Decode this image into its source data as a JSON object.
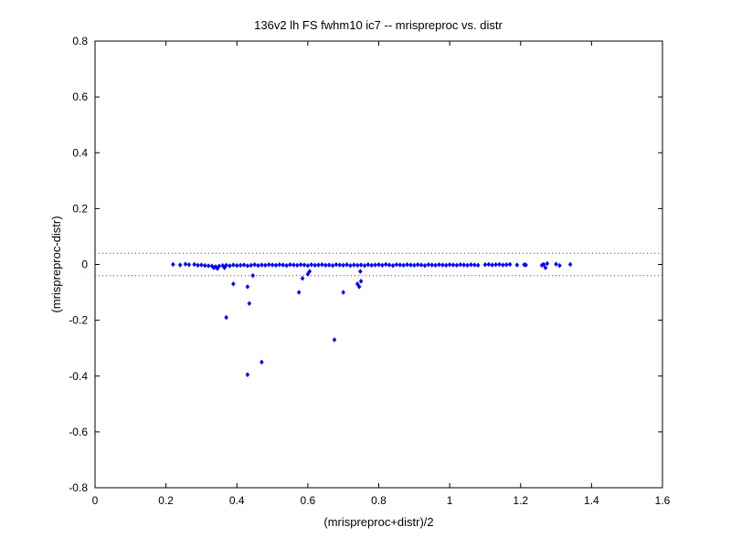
{
  "chart_data": {
    "type": "scatter",
    "title": "136v2 lh FS fwhm10 ic7 -- mrispreproc vs. distr",
    "xlabel": "(mrispreproc+distr)/2",
    "ylabel": "(mrispreproc-distr)",
    "xlim": [
      0,
      1.6
    ],
    "ylim": [
      -0.8,
      0.8
    ],
    "xticks": [
      "0",
      "0.2",
      "0.4",
      "0.6",
      "0.8",
      "1",
      "1.2",
      "1.4",
      "1.6"
    ],
    "xtick_values": [
      0,
      0.2,
      0.4,
      0.6,
      0.8,
      1.0,
      1.2,
      1.4,
      1.6
    ],
    "yticks": [
      "0.8",
      "0.6",
      "0.4",
      "0.2",
      "0",
      "-0.2",
      "-0.4",
      "-0.6",
      "-0.8"
    ],
    "ytick_values": [
      0.8,
      0.6,
      0.4,
      0.2,
      0,
      -0.2,
      -0.4,
      -0.6,
      -0.8
    ],
    "grid": false,
    "marker_color": "#0000ff",
    "threshold_color": "#ff0000",
    "threshold_lines": [
      0.04,
      -0.04
    ],
    "series": [
      {
        "points": [
          [
            0.22,
            0.0
          ],
          [
            0.24,
            -0.002
          ],
          [
            0.255,
            0.001
          ],
          [
            0.265,
            -0.001
          ],
          [
            0.28,
            0.0
          ],
          [
            0.29,
            -0.003
          ],
          [
            0.3,
            -0.002
          ],
          [
            0.31,
            -0.004
          ],
          [
            0.32,
            -0.005
          ],
          [
            0.33,
            -0.006
          ],
          [
            0.335,
            -0.012
          ],
          [
            0.34,
            -0.008
          ],
          [
            0.345,
            -0.015
          ],
          [
            0.35,
            -0.006
          ],
          [
            0.36,
            -0.004
          ],
          [
            0.365,
            -0.012
          ],
          [
            0.37,
            -0.003
          ],
          [
            0.38,
            -0.005
          ],
          [
            0.39,
            -0.002
          ],
          [
            0.4,
            -0.004
          ],
          [
            0.41,
            -0.003
          ],
          [
            0.42,
            -0.002
          ],
          [
            0.43,
            -0.005
          ],
          [
            0.44,
            -0.003
          ],
          [
            0.45,
            -0.001
          ],
          [
            0.46,
            -0.004
          ],
          [
            0.47,
            -0.002
          ],
          [
            0.48,
            -0.003
          ],
          [
            0.49,
            -0.001
          ],
          [
            0.5,
            -0.002
          ],
          [
            0.51,
            -0.003
          ],
          [
            0.52,
            -0.001
          ],
          [
            0.53,
            -0.002
          ],
          [
            0.54,
            -0.004
          ],
          [
            0.55,
            -0.001
          ],
          [
            0.56,
            -0.002
          ],
          [
            0.57,
            -0.003
          ],
          [
            0.58,
            -0.001
          ],
          [
            0.59,
            -0.002
          ],
          [
            0.6,
            -0.004
          ],
          [
            0.61,
            -0.001
          ],
          [
            0.62,
            -0.003
          ],
          [
            0.63,
            -0.002
          ],
          [
            0.64,
            -0.001
          ],
          [
            0.65,
            -0.003
          ],
          [
            0.66,
            -0.002
          ],
          [
            0.67,
            -0.004
          ],
          [
            0.68,
            -0.001
          ],
          [
            0.69,
            -0.002
          ],
          [
            0.7,
            -0.003
          ],
          [
            0.71,
            -0.001
          ],
          [
            0.72,
            -0.004
          ],
          [
            0.73,
            -0.002
          ],
          [
            0.74,
            -0.003
          ],
          [
            0.75,
            -0.002
          ],
          [
            0.76,
            -0.004
          ],
          [
            0.77,
            -0.001
          ],
          [
            0.78,
            -0.003
          ],
          [
            0.79,
            -0.002
          ],
          [
            0.8,
            -0.001
          ],
          [
            0.81,
            -0.003
          ],
          [
            0.82,
            0.0
          ],
          [
            0.83,
            -0.002
          ],
          [
            0.84,
            -0.004
          ],
          [
            0.85,
            -0.001
          ],
          [
            0.86,
            -0.002
          ],
          [
            0.87,
            -0.003
          ],
          [
            0.88,
            -0.001
          ],
          [
            0.89,
            -0.002
          ],
          [
            0.9,
            -0.003
          ],
          [
            0.91,
            -0.001
          ],
          [
            0.92,
            -0.002
          ],
          [
            0.93,
            -0.004
          ],
          [
            0.94,
            -0.001
          ],
          [
            0.95,
            -0.002
          ],
          [
            0.96,
            -0.003
          ],
          [
            0.97,
            -0.001
          ],
          [
            0.98,
            -0.002
          ],
          [
            0.99,
            -0.003
          ],
          [
            1.0,
            -0.001
          ],
          [
            1.01,
            -0.002
          ],
          [
            1.02,
            -0.003
          ],
          [
            1.03,
            -0.001
          ],
          [
            1.04,
            -0.002
          ],
          [
            1.05,
            -0.003
          ],
          [
            1.06,
            -0.001
          ],
          [
            1.07,
            -0.002
          ],
          [
            1.08,
            -0.003
          ],
          [
            1.1,
            -0.001
          ],
          [
            1.11,
            0.0
          ],
          [
            1.12,
            -0.002
          ],
          [
            1.13,
            -0.001
          ],
          [
            1.14,
            0.0
          ],
          [
            1.15,
            -0.002
          ],
          [
            1.16,
            -0.001
          ],
          [
            1.17,
            0.0
          ],
          [
            1.19,
            -0.002
          ],
          [
            1.21,
            -0.001
          ],
          [
            1.215,
            -0.002
          ],
          [
            1.26,
            -0.003
          ],
          [
            1.265,
            0.0
          ],
          [
            1.27,
            -0.012
          ],
          [
            1.275,
            0.003
          ],
          [
            1.3,
            0.001
          ],
          [
            1.31,
            -0.004
          ],
          [
            1.34,
            0.0
          ],
          [
            0.39,
            -0.07
          ],
          [
            0.37,
            -0.19
          ],
          [
            0.43,
            -0.08
          ],
          [
            0.435,
            -0.14
          ],
          [
            0.445,
            -0.04
          ],
          [
            0.43,
            -0.395
          ],
          [
            0.47,
            -0.35
          ],
          [
            0.575,
            -0.1
          ],
          [
            0.585,
            -0.05
          ],
          [
            0.6,
            -0.035
          ],
          [
            0.605,
            -0.025
          ],
          [
            0.675,
            -0.27
          ],
          [
            0.7,
            -0.1
          ],
          [
            0.74,
            -0.07
          ],
          [
            0.745,
            -0.08
          ],
          [
            0.75,
            -0.06
          ],
          [
            0.748,
            -0.025
          ]
        ]
      }
    ]
  }
}
